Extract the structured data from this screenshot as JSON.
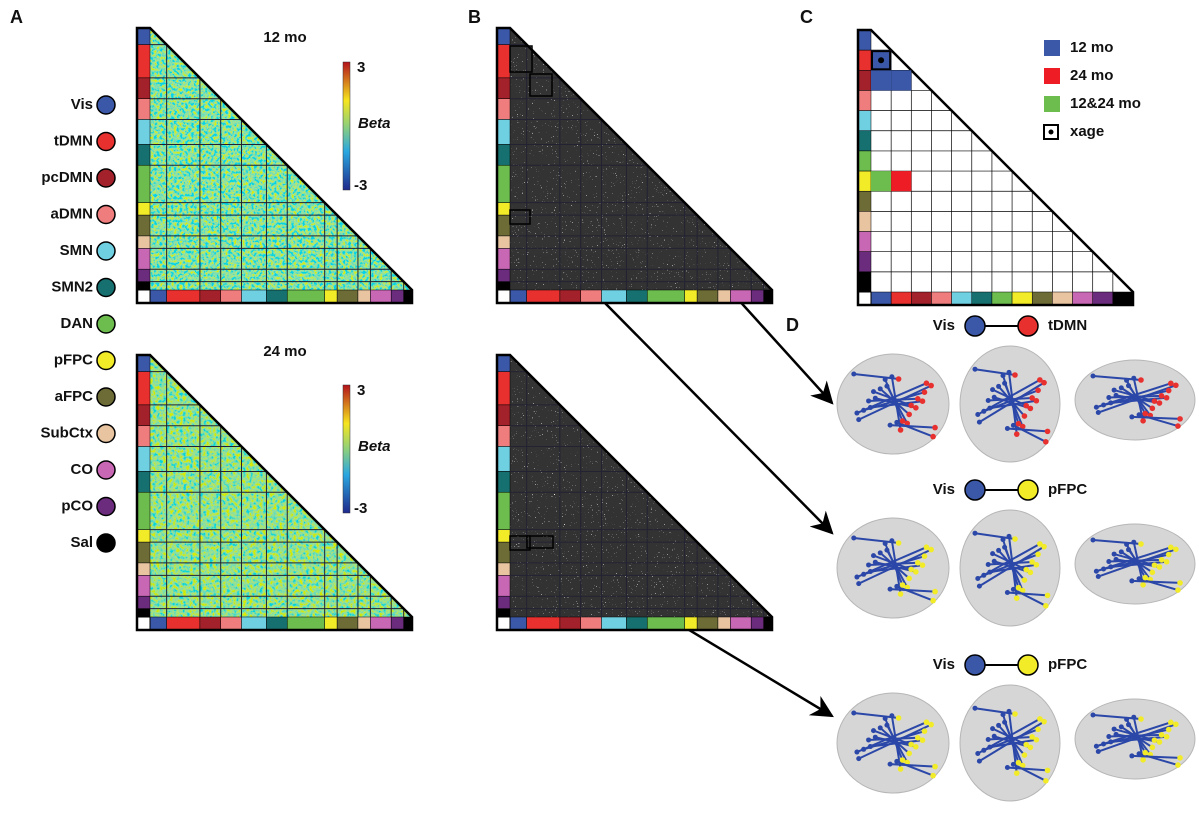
{
  "panels": {
    "a": "A",
    "b": "B",
    "c": "C",
    "d": "D"
  },
  "panel_a": {
    "top_title": "12 mo",
    "bottom_title": "24 mo",
    "colorbar_max": "3",
    "colorbar_min": "-3",
    "colorbar_label": "Beta"
  },
  "networks": [
    {
      "label": "Vis",
      "color": "#3b58a8"
    },
    {
      "label": "tDMN",
      "color": "#e8302f"
    },
    {
      "label": "pcDMN",
      "color": "#a3212b"
    },
    {
      "label": "aDMN",
      "color": "#ef7d7d"
    },
    {
      "label": "SMN",
      "color": "#6fd0e2"
    },
    {
      "label": "SMN2",
      "color": "#15706f"
    },
    {
      "label": "DAN",
      "color": "#6cbc4e"
    },
    {
      "label": "pFPC",
      "color": "#f2eb27"
    },
    {
      "label": "aFPC",
      "color": "#6d6c36"
    },
    {
      "label": "SubCtx",
      "color": "#e8c4a0"
    },
    {
      "label": "CO",
      "color": "#c867b4"
    },
    {
      "label": "pCO",
      "color": "#6b2c7d"
    },
    {
      "label": "Sal",
      "color": "#000000"
    }
  ],
  "panel_c": {
    "legend": [
      {
        "label": "12 mo",
        "color": "#3b58a8"
      },
      {
        "label": "24 mo",
        "color": "#ee1c24"
      },
      {
        "label": "12&24 mo",
        "color": "#6cbc4e"
      },
      {
        "label": "xage",
        "color": "#000000"
      }
    ]
  },
  "panel_d": {
    "rows": [
      {
        "from": "Vis",
        "to": "tDMN"
      },
      {
        "from": "Vis",
        "to": "pFPC"
      },
      {
        "from": "Vis",
        "to": "pFPC"
      }
    ]
  }
}
